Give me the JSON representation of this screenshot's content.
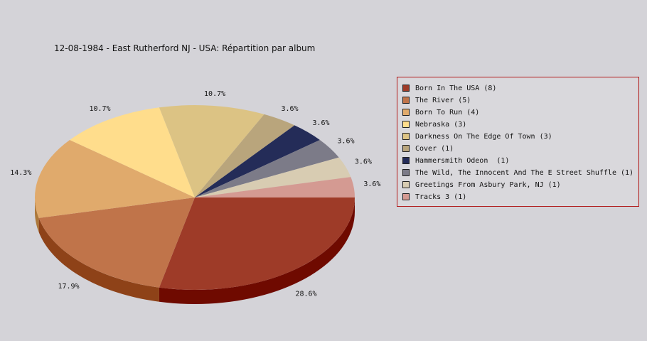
{
  "chart_data": {
    "type": "pie",
    "title": "12-08-1984 - East Rutherford NJ - USA:  Répartition par album",
    "legend_position": "right",
    "slices": [
      {
        "label": "Born In The USA",
        "value": 8,
        "legend": "Born In The USA (8)",
        "pct": "28.6%",
        "color": "#9e3b28",
        "side": "#6f0a00"
      },
      {
        "label": "The River",
        "value": 5,
        "legend": "The River (5)",
        "pct": "17.9%",
        "color": "#c0744a",
        "side": "#8e4218"
      },
      {
        "label": "Born To Run",
        "value": 4,
        "legend": "Born To Run (4)",
        "pct": "14.3%",
        "color": "#e0aa6c",
        "side": "#ad783a"
      },
      {
        "label": "Nebraska",
        "value": 3,
        "legend": "Nebraska (3)",
        "pct": "10.7%",
        "color": "#ffdd8c",
        "side": "#cdab5a"
      },
      {
        "label": "Darkness On The Edge Of Town",
        "value": 3,
        "legend": "Darkness On The Edge Of Town (3)",
        "pct": "10.7%",
        "color": "#dcc384",
        "side": "#aa9152"
      },
      {
        "label": "Cover",
        "value": 1,
        "legend": "Cover (1)",
        "pct": "3.6%",
        "color": "#b9a57c",
        "side": "#87734a"
      },
      {
        "label": "Hammersmith Odeon ",
        "value": 1,
        "legend": "Hammersmith Odeon  (1)",
        "pct": "3.6%",
        "color": "#242c58",
        "side": "#0a1030"
      },
      {
        "label": "The Wild, The Innocent And The E Street Shuffle",
        "value": 1,
        "legend": "The Wild, The Innocent And The E Street Shuffle (1)",
        "pct": "3.6%",
        "color": "#7c7b88",
        "side": "#4c4b58"
      },
      {
        "label": "Greetings From Asbury Park, NJ",
        "value": 1,
        "legend": "Greetings From Asbury Park, NJ (1)",
        "pct": "3.6%",
        "color": "#d8ccb2",
        "side": "#a69a80"
      },
      {
        "label": "Tracks 3",
        "value": 1,
        "legend": "Tracks 3 (1)",
        "pct": "3.6%",
        "color": "#d49a92",
        "side": "#a26860"
      }
    ]
  }
}
